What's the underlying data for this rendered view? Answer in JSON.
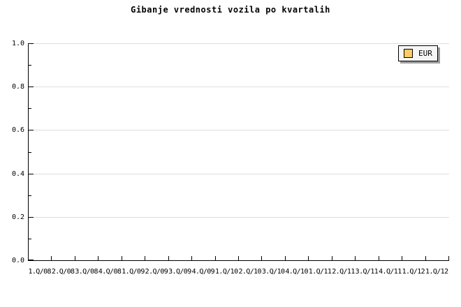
{
  "chart_data": {
    "type": "line",
    "title": "Gibanje vrednosti vozila po kvartalih",
    "categories": [
      "1.Q/08",
      "2.Q/08",
      "3.Q/08",
      "4.Q/08",
      "1.Q/09",
      "2.Q/09",
      "3.Q/09",
      "4.Q/09",
      "1.Q/10",
      "2.Q/10",
      "3.Q/10",
      "4.Q/10",
      "1.Q/11",
      "2.Q/11",
      "3.Q/11",
      "4.Q/11",
      "1.Q/12",
      "1.Q/12"
    ],
    "series": [
      {
        "name": "EUR",
        "color": "#ffcc66",
        "values": []
      }
    ],
    "xlabel": "",
    "ylabel": "",
    "ylim": [
      0.0,
      1.0
    ],
    "y_tick_labels": [
      "1.0",
      "0.8",
      "0.6",
      "0.4",
      "0.2",
      "0.0"
    ],
    "y_minor_tick_step": 0.1,
    "grid": true,
    "legend_position": "top-right"
  },
  "legend": {
    "entries": [
      {
        "label": "EUR",
        "swatch_color": "#ffcc66"
      }
    ]
  },
  "colors": {
    "background": "#ffffff",
    "axis": "#000000",
    "gridline": "#dedede",
    "text": "#000000",
    "legend_bg": "#f6f6f6",
    "legend_border": "#000000",
    "legend_shadow": "#9c9c9c",
    "series_eur": "#ffcc66"
  }
}
